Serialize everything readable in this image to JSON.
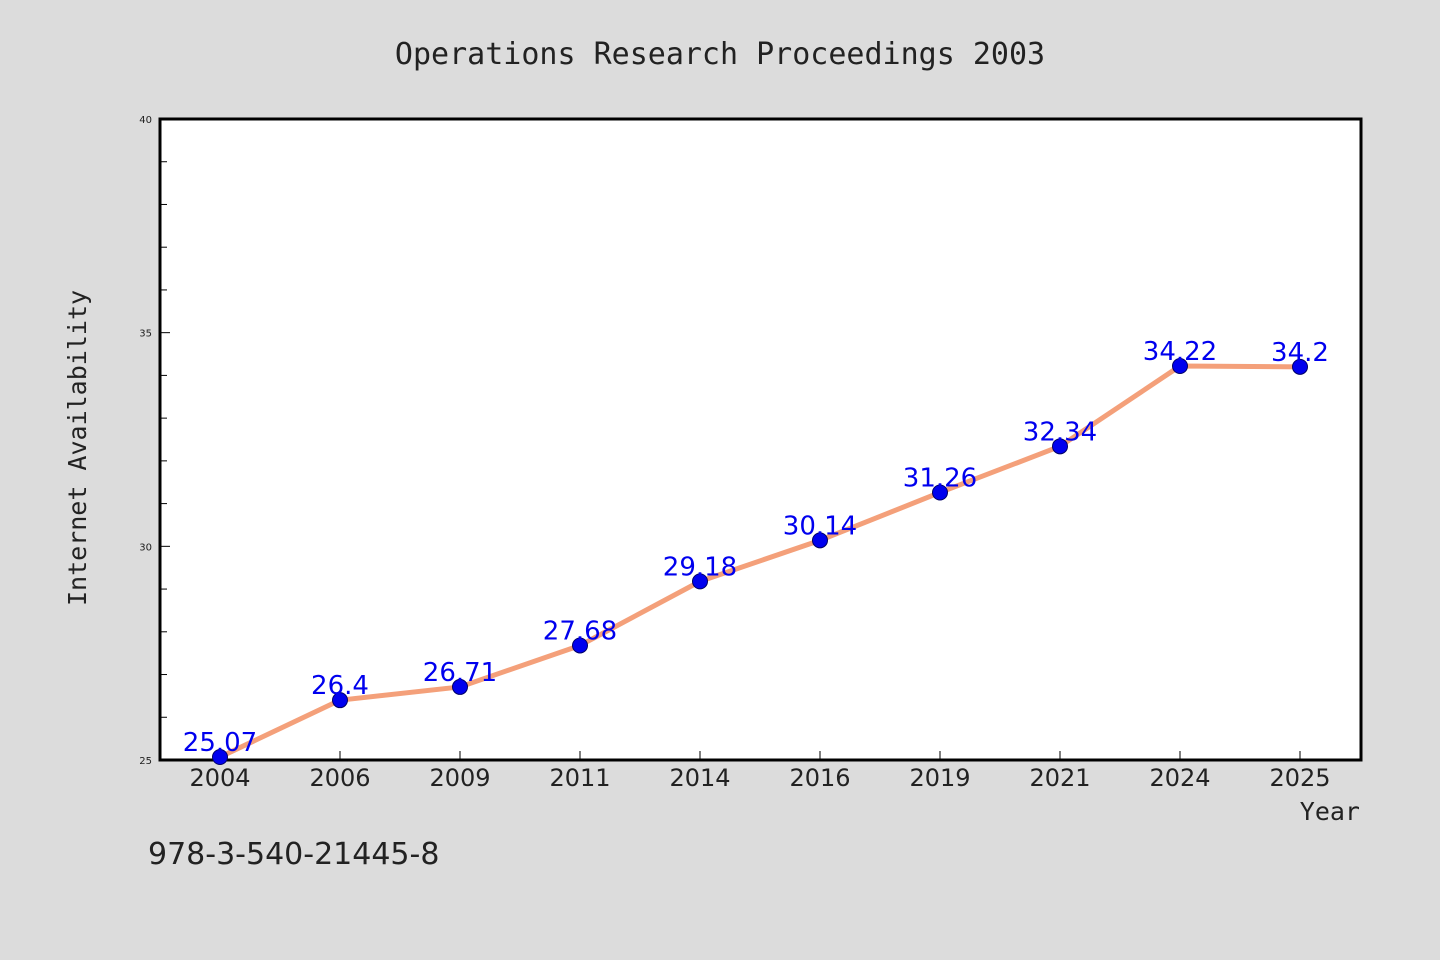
{
  "chart_data": {
    "type": "line",
    "title": "Operations Research Proceedings 2003",
    "xlabel": "Year",
    "ylabel": "Internet Availability",
    "categories": [
      "2004",
      "2006",
      "2009",
      "2011",
      "2014",
      "2016",
      "2019",
      "2021",
      "2024",
      "2025"
    ],
    "series": [
      {
        "values": [
          25.07,
          26.4,
          26.71,
          27.68,
          29.18,
          30.14,
          31.26,
          32.34,
          34.22,
          34.2
        ],
        "labels": [
          "25.07",
          "26.4",
          "26.71",
          "27.68",
          "29.18",
          "30.14",
          "31.26",
          "32.34",
          "34.22",
          "34.2"
        ],
        "line_color": "#f4a07a",
        "marker_color": "#0000ee",
        "label_color": "#0000ee"
      }
    ],
    "ylim": [
      25,
      40
    ],
    "yticks": [
      "25",
      "30",
      "35",
      "40"
    ],
    "grid": false,
    "legend": "none"
  },
  "caption": "978-3-540-21445-8",
  "colors": {
    "background": "#dcdcdc",
    "plot_background": "#ffffff",
    "frame": "#000000"
  }
}
